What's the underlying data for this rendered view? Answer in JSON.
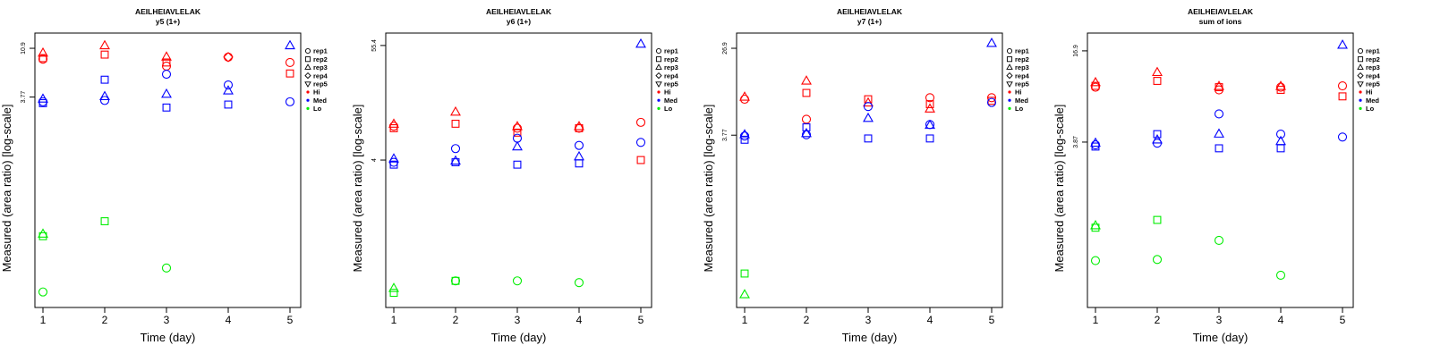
{
  "colors": {
    "Hi": "#ff0000",
    "Med": "#0000ff",
    "Lo": "#00ee00",
    "axis": "#000000"
  },
  "legend": {
    "items": [
      {
        "label": "rep1",
        "kind": "shape",
        "shape": "circle"
      },
      {
        "label": "rep2",
        "kind": "shape",
        "shape": "square"
      },
      {
        "label": "rep3",
        "kind": "shape",
        "shape": "triangle"
      },
      {
        "label": "rep4",
        "kind": "shape",
        "shape": "diamond"
      },
      {
        "label": "rep5",
        "kind": "shape",
        "shape": "triangle-down"
      },
      {
        "label": "Hi",
        "kind": "color",
        "color": "#ff0000"
      },
      {
        "label": "Med",
        "kind": "color",
        "color": "#0000ff"
      },
      {
        "label": "Lo",
        "kind": "color",
        "color": "#00ee00"
      }
    ],
    "placement": "right"
  },
  "chart_data": [
    {
      "type": "scatter",
      "title": "AEILHEIAVLELAK",
      "subtitle": "y5 (1+)",
      "xlabel": "Time (day)",
      "ylabel": "Measured (area ratio) [log-scale]",
      "x_ticks": [
        "1",
        "2",
        "3",
        "4",
        "5"
      ],
      "xlim": [
        1,
        5
      ],
      "y_scale": "log",
      "y_ticks": [
        "10.9",
        "3.77"
      ],
      "ylim": [
        0.045,
        12.5
      ],
      "points": [
        {
          "x": 1,
          "y": 8.6,
          "group": "Hi",
          "shape": "circle"
        },
        {
          "x": 1,
          "y": 8.8,
          "group": "Hi",
          "shape": "square"
        },
        {
          "x": 1,
          "y": 9.8,
          "group": "Hi",
          "shape": "triangle"
        },
        {
          "x": 2,
          "y": 9.5,
          "group": "Hi",
          "shape": "square"
        },
        {
          "x": 2,
          "y": 11.5,
          "group": "Hi",
          "shape": "triangle"
        },
        {
          "x": 3,
          "y": 7.4,
          "group": "Hi",
          "shape": "circle"
        },
        {
          "x": 3,
          "y": 8.0,
          "group": "Hi",
          "shape": "square"
        },
        {
          "x": 3,
          "y": 9.0,
          "group": "Hi",
          "shape": "triangle"
        },
        {
          "x": 4,
          "y": 9.0,
          "group": "Hi",
          "shape": "circle"
        },
        {
          "x": 4,
          "y": 9.0,
          "group": "Hi",
          "shape": "diamond"
        },
        {
          "x": 5,
          "y": 8.0,
          "group": "Hi",
          "shape": "circle"
        },
        {
          "x": 5,
          "y": 6.3,
          "group": "Hi",
          "shape": "square"
        },
        {
          "x": 1,
          "y": 3.4,
          "group": "Med",
          "shape": "circle"
        },
        {
          "x": 1,
          "y": 3.3,
          "group": "Med",
          "shape": "square"
        },
        {
          "x": 1,
          "y": 3.6,
          "group": "Med",
          "shape": "triangle"
        },
        {
          "x": 2,
          "y": 3.5,
          "group": "Med",
          "shape": "circle"
        },
        {
          "x": 2,
          "y": 5.5,
          "group": "Med",
          "shape": "square"
        },
        {
          "x": 2,
          "y": 3.8,
          "group": "Med",
          "shape": "triangle"
        },
        {
          "x": 3,
          "y": 6.2,
          "group": "Med",
          "shape": "circle"
        },
        {
          "x": 3,
          "y": 3.0,
          "group": "Med",
          "shape": "square"
        },
        {
          "x": 3,
          "y": 4.0,
          "group": "Med",
          "shape": "triangle"
        },
        {
          "x": 4,
          "y": 4.9,
          "group": "Med",
          "shape": "circle"
        },
        {
          "x": 4,
          "y": 3.2,
          "group": "Med",
          "shape": "square"
        },
        {
          "x": 4,
          "y": 4.3,
          "group": "Med",
          "shape": "triangle"
        },
        {
          "x": 5,
          "y": 3.4,
          "group": "Med",
          "shape": "circle"
        },
        {
          "x": 5,
          "y": 11.5,
          "group": "Med",
          "shape": "triangle"
        },
        {
          "x": 1,
          "y": 0.054,
          "group": "Lo",
          "shape": "circle"
        },
        {
          "x": 1,
          "y": 0.182,
          "group": "Lo",
          "shape": "square"
        },
        {
          "x": 1,
          "y": 0.19,
          "group": "Lo",
          "shape": "triangle"
        },
        {
          "x": 2,
          "y": 0.252,
          "group": "Lo",
          "shape": "square"
        },
        {
          "x": 3,
          "y": 0.091,
          "group": "Lo",
          "shape": "circle"
        }
      ]
    },
    {
      "type": "scatter",
      "title": "AEILHEIAVLELAK",
      "subtitle": "y6 (1+)",
      "xlabel": "Time (day)",
      "ylabel": "Measured (area ratio) [log-scale]",
      "x_ticks": [
        "1",
        "2",
        "3",
        "4",
        "5"
      ],
      "xlim": [
        1,
        5
      ],
      "y_scale": "log",
      "y_ticks": [
        "55.4",
        "4"
      ],
      "ylim": [
        0.16,
        60
      ],
      "points": [
        {
          "x": 1,
          "y": 8.7,
          "group": "Hi",
          "shape": "circle"
        },
        {
          "x": 1,
          "y": 8.3,
          "group": "Hi",
          "shape": "square"
        },
        {
          "x": 1,
          "y": 9.1,
          "group": "Hi",
          "shape": "triangle"
        },
        {
          "x": 2,
          "y": 9.2,
          "group": "Hi",
          "shape": "square"
        },
        {
          "x": 2,
          "y": 12.0,
          "group": "Hi",
          "shape": "triangle"
        },
        {
          "x": 3,
          "y": 8.3,
          "group": "Hi",
          "shape": "circle"
        },
        {
          "x": 3,
          "y": 7.5,
          "group": "Hi",
          "shape": "square"
        },
        {
          "x": 3,
          "y": 8.6,
          "group": "Hi",
          "shape": "triangle"
        },
        {
          "x": 4,
          "y": 8.3,
          "group": "Hi",
          "shape": "circle"
        },
        {
          "x": 4,
          "y": 8.3,
          "group": "Hi",
          "shape": "square"
        },
        {
          "x": 4,
          "y": 8.6,
          "group": "Hi",
          "shape": "triangle"
        },
        {
          "x": 5,
          "y": 9.5,
          "group": "Hi",
          "shape": "circle"
        },
        {
          "x": 5,
          "y": 4.0,
          "group": "Hi",
          "shape": "square"
        },
        {
          "x": 1,
          "y": 3.8,
          "group": "Med",
          "shape": "circle"
        },
        {
          "x": 1,
          "y": 3.6,
          "group": "Med",
          "shape": "square"
        },
        {
          "x": 1,
          "y": 4.1,
          "group": "Med",
          "shape": "triangle"
        },
        {
          "x": 2,
          "y": 5.2,
          "group": "Med",
          "shape": "circle"
        },
        {
          "x": 2,
          "y": 3.8,
          "group": "Med",
          "shape": "square"
        },
        {
          "x": 2,
          "y": 3.9,
          "group": "Med",
          "shape": "triangle"
        },
        {
          "x": 3,
          "y": 6.6,
          "group": "Med",
          "shape": "circle"
        },
        {
          "x": 3,
          "y": 3.6,
          "group": "Med",
          "shape": "square"
        },
        {
          "x": 3,
          "y": 5.4,
          "group": "Med",
          "shape": "triangle"
        },
        {
          "x": 4,
          "y": 5.6,
          "group": "Med",
          "shape": "circle"
        },
        {
          "x": 4,
          "y": 3.7,
          "group": "Med",
          "shape": "square"
        },
        {
          "x": 4,
          "y": 4.3,
          "group": "Med",
          "shape": "triangle"
        },
        {
          "x": 5,
          "y": 6.0,
          "group": "Med",
          "shape": "circle"
        },
        {
          "x": 5,
          "y": 57.0,
          "group": "Med",
          "shape": "triangle"
        },
        {
          "x": 1,
          "y": 0.19,
          "group": "Lo",
          "shape": "square"
        },
        {
          "x": 1,
          "y": 0.21,
          "group": "Lo",
          "shape": "triangle"
        },
        {
          "x": 2,
          "y": 0.25,
          "group": "Lo",
          "shape": "circle"
        },
        {
          "x": 2,
          "y": 0.25,
          "group": "Lo",
          "shape": "square"
        },
        {
          "x": 3,
          "y": 0.25,
          "group": "Lo",
          "shape": "circle"
        },
        {
          "x": 4,
          "y": 0.24,
          "group": "Lo",
          "shape": "circle"
        }
      ]
    },
    {
      "type": "scatter",
      "title": "AEILHEIAVLELAK",
      "subtitle": "y7 (1+)",
      "xlabel": "Time (day)",
      "ylabel": "Measured (area ratio) [log-scale]",
      "x_ticks": [
        "1",
        "2",
        "3",
        "4",
        "5"
      ],
      "xlim": [
        1,
        5
      ],
      "y_scale": "log",
      "y_ticks": [
        "26.9",
        "3.77"
      ],
      "ylim": [
        0.09,
        31
      ],
      "points": [
        {
          "x": 1,
          "y": 8.5,
          "group": "Hi",
          "shape": "circle"
        },
        {
          "x": 1,
          "y": 8.9,
          "group": "Hi",
          "shape": "triangle"
        },
        {
          "x": 2,
          "y": 5.4,
          "group": "Hi",
          "shape": "circle"
        },
        {
          "x": 2,
          "y": 9.8,
          "group": "Hi",
          "shape": "square"
        },
        {
          "x": 2,
          "y": 12.8,
          "group": "Hi",
          "shape": "triangle"
        },
        {
          "x": 3,
          "y": 8.5,
          "group": "Hi",
          "shape": "square"
        },
        {
          "x": 3,
          "y": 7.8,
          "group": "Hi",
          "shape": "triangle"
        },
        {
          "x": 4,
          "y": 8.8,
          "group": "Hi",
          "shape": "circle"
        },
        {
          "x": 4,
          "y": 7.6,
          "group": "Hi",
          "shape": "square"
        },
        {
          "x": 4,
          "y": 6.8,
          "group": "Hi",
          "shape": "triangle"
        },
        {
          "x": 5,
          "y": 8.8,
          "group": "Hi",
          "shape": "circle"
        },
        {
          "x": 5,
          "y": 8.2,
          "group": "Hi",
          "shape": "square"
        },
        {
          "x": 1,
          "y": 3.7,
          "group": "Med",
          "shape": "circle"
        },
        {
          "x": 1,
          "y": 3.4,
          "group": "Med",
          "shape": "square"
        },
        {
          "x": 1,
          "y": 3.8,
          "group": "Med",
          "shape": "triangle"
        },
        {
          "x": 2,
          "y": 3.8,
          "group": "Med",
          "shape": "circle"
        },
        {
          "x": 2,
          "y": 4.5,
          "group": "Med",
          "shape": "square"
        },
        {
          "x": 2,
          "y": 3.9,
          "group": "Med",
          "shape": "triangle"
        },
        {
          "x": 3,
          "y": 7.2,
          "group": "Med",
          "shape": "circle"
        },
        {
          "x": 3,
          "y": 3.5,
          "group": "Med",
          "shape": "square"
        },
        {
          "x": 3,
          "y": 5.5,
          "group": "Med",
          "shape": "triangle"
        },
        {
          "x": 4,
          "y": 4.8,
          "group": "Med",
          "shape": "circle"
        },
        {
          "x": 4,
          "y": 3.5,
          "group": "Med",
          "shape": "square"
        },
        {
          "x": 4,
          "y": 4.7,
          "group": "Med",
          "shape": "triangle"
        },
        {
          "x": 5,
          "y": 7.9,
          "group": "Med",
          "shape": "circle"
        },
        {
          "x": 5,
          "y": 30.0,
          "group": "Med",
          "shape": "triangle"
        },
        {
          "x": 1,
          "y": 0.165,
          "group": "Lo",
          "shape": "square"
        },
        {
          "x": 1,
          "y": 0.102,
          "group": "Lo",
          "shape": "triangle"
        }
      ]
    },
    {
      "type": "scatter",
      "title": "AEILHEIAVLELAK",
      "subtitle": "sum of ions",
      "xlabel": "Time (day)",
      "ylabel": "Measured (area ratio) [log-scale]",
      "x_ticks": [
        "1",
        "2",
        "3",
        "4",
        "5"
      ],
      "xlim": [
        1,
        5
      ],
      "y_scale": "log",
      "y_ticks": [
        "16.9",
        "3.87"
      ],
      "ylim": [
        0.3,
        19.5
      ],
      "points": [
        {
          "x": 1,
          "y": 9.4,
          "group": "Hi",
          "shape": "circle"
        },
        {
          "x": 1,
          "y": 9.6,
          "group": "Hi",
          "shape": "square"
        },
        {
          "x": 1,
          "y": 10.1,
          "group": "Hi",
          "shape": "triangle"
        },
        {
          "x": 2,
          "y": 10.4,
          "group": "Hi",
          "shape": "square"
        },
        {
          "x": 2,
          "y": 11.9,
          "group": "Hi",
          "shape": "triangle"
        },
        {
          "x": 3,
          "y": 9.0,
          "group": "Hi",
          "shape": "circle"
        },
        {
          "x": 3,
          "y": 9.4,
          "group": "Hi",
          "shape": "square"
        },
        {
          "x": 3,
          "y": 9.5,
          "group": "Hi",
          "shape": "triangle"
        },
        {
          "x": 4,
          "y": 9.4,
          "group": "Hi",
          "shape": "circle"
        },
        {
          "x": 4,
          "y": 9.0,
          "group": "Hi",
          "shape": "square"
        },
        {
          "x": 4,
          "y": 9.5,
          "group": "Hi",
          "shape": "triangle"
        },
        {
          "x": 5,
          "y": 9.6,
          "group": "Hi",
          "shape": "circle"
        },
        {
          "x": 5,
          "y": 8.1,
          "group": "Hi",
          "shape": "square"
        },
        {
          "x": 1,
          "y": 3.7,
          "group": "Med",
          "shape": "circle"
        },
        {
          "x": 1,
          "y": 3.6,
          "group": "Med",
          "shape": "square"
        },
        {
          "x": 1,
          "y": 3.8,
          "group": "Med",
          "shape": "triangle"
        },
        {
          "x": 2,
          "y": 3.8,
          "group": "Med",
          "shape": "circle"
        },
        {
          "x": 2,
          "y": 4.4,
          "group": "Med",
          "shape": "square"
        },
        {
          "x": 2,
          "y": 4.0,
          "group": "Med",
          "shape": "triangle"
        },
        {
          "x": 3,
          "y": 6.1,
          "group": "Med",
          "shape": "circle"
        },
        {
          "x": 3,
          "y": 3.5,
          "group": "Med",
          "shape": "square"
        },
        {
          "x": 3,
          "y": 4.4,
          "group": "Med",
          "shape": "triangle"
        },
        {
          "x": 4,
          "y": 4.4,
          "group": "Med",
          "shape": "circle"
        },
        {
          "x": 4,
          "y": 3.5,
          "group": "Med",
          "shape": "square"
        },
        {
          "x": 4,
          "y": 3.9,
          "group": "Med",
          "shape": "triangle"
        },
        {
          "x": 5,
          "y": 4.2,
          "group": "Med",
          "shape": "circle"
        },
        {
          "x": 5,
          "y": 18.5,
          "group": "Med",
          "shape": "triangle"
        },
        {
          "x": 1,
          "y": 0.57,
          "group": "Lo",
          "shape": "circle"
        },
        {
          "x": 1,
          "y": 0.97,
          "group": "Lo",
          "shape": "square"
        },
        {
          "x": 1,
          "y": 1.0,
          "group": "Lo",
          "shape": "triangle"
        },
        {
          "x": 2,
          "y": 0.58,
          "group": "Lo",
          "shape": "circle"
        },
        {
          "x": 2,
          "y": 1.1,
          "group": "Lo",
          "shape": "square"
        },
        {
          "x": 3,
          "y": 0.79,
          "group": "Lo",
          "shape": "circle"
        },
        {
          "x": 4,
          "y": 0.45,
          "group": "Lo",
          "shape": "circle"
        }
      ]
    }
  ]
}
